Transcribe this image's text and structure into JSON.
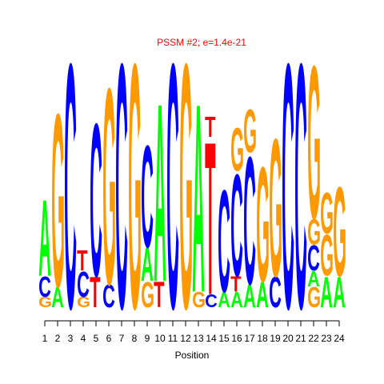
{
  "chart_data": {
    "type": "sequence-logo",
    "title": "PSSM #2; e=1.4e-21",
    "xlabel": "Position",
    "ylabel": "",
    "colors": {
      "A": "#00ff00",
      "C": "#0000ff",
      "G": "#ff9900",
      "T": "#ff0000",
      "title": "#ff0000"
    },
    "positions": [
      1,
      2,
      3,
      4,
      5,
      6,
      7,
      8,
      9,
      10,
      11,
      12,
      13,
      14,
      15,
      16,
      17,
      18,
      19,
      20,
      21,
      22,
      23,
      24
    ],
    "max_height": 1,
    "columns": [
      [
        {
          "l": "G",
          "h": 0.04
        },
        {
          "l": "C",
          "h": 0.08
        },
        {
          "l": "A",
          "h": 0.3
        }
      ],
      [
        {
          "l": "A",
          "h": 0.08
        },
        {
          "l": "G",
          "h": 0.68
        }
      ],
      [
        {
          "l": "C",
          "h": 0.96
        }
      ],
      [
        {
          "l": "G",
          "h": 0.04
        },
        {
          "l": "C",
          "h": 0.1
        },
        {
          "l": "T",
          "h": 0.08
        }
      ],
      [
        {
          "l": "T",
          "h": 0.12
        },
        {
          "l": "C",
          "h": 0.6
        }
      ],
      [
        {
          "l": "C",
          "h": 0.09
        },
        {
          "l": "G",
          "h": 0.77
        }
      ],
      [
        {
          "l": "C",
          "h": 0.96
        }
      ],
      [
        {
          "l": "G",
          "h": 0.96
        }
      ],
      [
        {
          "l": "G",
          "h": 0.1
        },
        {
          "l": "A",
          "h": 0.13
        },
        {
          "l": "C",
          "h": 0.4
        }
      ],
      [
        {
          "l": "T",
          "h": 0.1
        },
        {
          "l": "A",
          "h": 0.7
        }
      ],
      [
        {
          "l": "C",
          "h": 0.96
        }
      ],
      [
        {
          "l": "G",
          "h": 0.96
        }
      ],
      [
        {
          "l": "G",
          "h": 0.06
        },
        {
          "l": "A",
          "h": 0.74
        }
      ],
      [
        {
          "l": "C",
          "h": 0.05
        },
        {
          "l": "T",
          "h": 0.6
        },
        {
          "l": "T",
          "h": 0.08
        }
      ],
      [
        {
          "l": "A",
          "h": 0.06
        },
        {
          "l": "C",
          "h": 0.4
        }
      ],
      [
        {
          "l": "A",
          "h": 0.06
        },
        {
          "l": "T",
          "h": 0.06
        },
        {
          "l": "C",
          "h": 0.4
        },
        {
          "l": "G",
          "h": 0.17
        }
      ],
      [
        {
          "l": "A",
          "h": 0.09
        },
        {
          "l": "C",
          "h": 0.5
        },
        {
          "l": "G",
          "h": 0.17
        }
      ],
      [
        {
          "l": "A",
          "h": 0.1
        },
        {
          "l": "G",
          "h": 0.45
        }
      ],
      [
        {
          "l": "C",
          "h": 0.12
        },
        {
          "l": "G",
          "h": 0.54
        }
      ],
      [
        {
          "l": "C",
          "h": 0.96
        }
      ],
      [
        {
          "l": "C",
          "h": 0.96
        }
      ],
      [
        {
          "l": "G",
          "h": 0.08
        },
        {
          "l": "A",
          "h": 0.06
        },
        {
          "l": "C",
          "h": 0.1
        },
        {
          "l": "G",
          "h": 0.1
        },
        {
          "l": "G",
          "h": 0.6
        }
      ],
      [
        {
          "l": "A",
          "h": 0.12
        },
        {
          "l": "G",
          "h": 0.16
        },
        {
          "l": "G",
          "h": 0.16
        }
      ],
      [
        {
          "l": "A",
          "h": 0.12
        },
        {
          "l": "G",
          "h": 0.35
        }
      ]
    ]
  }
}
